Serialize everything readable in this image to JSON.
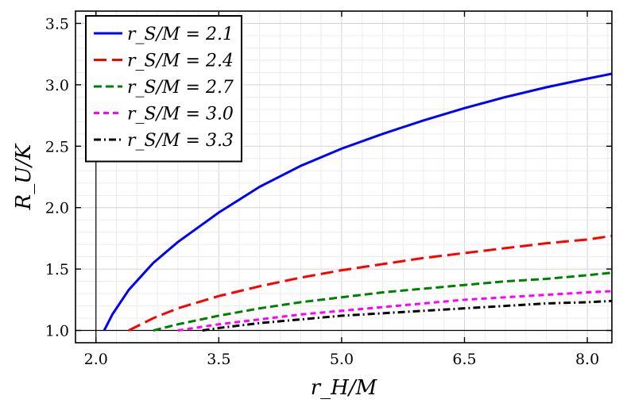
{
  "chart_data": {
    "type": "line",
    "xlabel": "r_H/M",
    "ylabel": "R_U/K",
    "xlim": [
      1.75,
      8.3
    ],
    "ylim": [
      0.9,
      3.6
    ],
    "grid": true,
    "legend_position": "top-left",
    "xticks": [
      2.0,
      3.5,
      5.0,
      6.5,
      8.0
    ],
    "xtick_labels": [
      "2.0",
      "3.5",
      "5.0",
      "6.5",
      "8.0"
    ],
    "yticks": [
      1.0,
      1.5,
      2.0,
      2.5,
      3.0,
      3.5
    ],
    "ytick_labels": [
      "1.0",
      "1.5",
      "2.0",
      "2.5",
      "3.0",
      "3.5"
    ],
    "series": [
      {
        "name": "r_S/M = 2.1",
        "color": "#0000ff",
        "dash": "solid",
        "x": [
          2.1,
          2.2,
          2.4,
          2.7,
          3.0,
          3.5,
          4.0,
          4.5,
          5.0,
          5.5,
          6.0,
          6.5,
          7.0,
          7.5,
          8.0,
          8.3
        ],
        "y": [
          1.0,
          1.13,
          1.33,
          1.55,
          1.72,
          1.96,
          2.17,
          2.34,
          2.48,
          2.6,
          2.71,
          2.81,
          2.9,
          2.98,
          3.05,
          3.09
        ]
      },
      {
        "name": "r_S/M = 2.4",
        "color": "#ff0000",
        "dash": "long-dash",
        "x": [
          2.4,
          2.7,
          3.0,
          3.5,
          4.0,
          4.5,
          5.0,
          5.5,
          6.0,
          6.5,
          7.0,
          7.5,
          8.0,
          8.3
        ],
        "y": [
          1.0,
          1.1,
          1.18,
          1.28,
          1.36,
          1.43,
          1.49,
          1.54,
          1.59,
          1.63,
          1.67,
          1.71,
          1.74,
          1.77
        ]
      },
      {
        "name": "r_S/M = 2.7",
        "color": "#008000",
        "dash": "dash",
        "x": [
          2.7,
          3.0,
          3.5,
          4.0,
          4.5,
          5.0,
          5.5,
          6.0,
          6.5,
          7.0,
          7.5,
          8.0,
          8.3
        ],
        "y": [
          1.0,
          1.05,
          1.12,
          1.18,
          1.23,
          1.27,
          1.31,
          1.34,
          1.37,
          1.4,
          1.42,
          1.45,
          1.47
        ]
      },
      {
        "name": "r_S/M = 3.0",
        "color": "#ff00ff",
        "dash": "short-dash",
        "x": [
          3.0,
          3.5,
          4.0,
          4.5,
          5.0,
          5.5,
          6.0,
          6.5,
          7.0,
          7.5,
          8.0,
          8.3
        ],
        "y": [
          1.0,
          1.05,
          1.09,
          1.13,
          1.16,
          1.19,
          1.22,
          1.25,
          1.27,
          1.29,
          1.31,
          1.32
        ]
      },
      {
        "name": "r_S/M = 3.3",
        "color": "#000000",
        "dash": "dash-dot",
        "x": [
          3.3,
          3.5,
          4.0,
          4.5,
          5.0,
          5.5,
          6.0,
          6.5,
          7.0,
          7.5,
          8.0,
          8.3
        ],
        "y": [
          1.0,
          1.02,
          1.06,
          1.09,
          1.12,
          1.14,
          1.16,
          1.18,
          1.2,
          1.22,
          1.23,
          1.24
        ]
      }
    ]
  }
}
